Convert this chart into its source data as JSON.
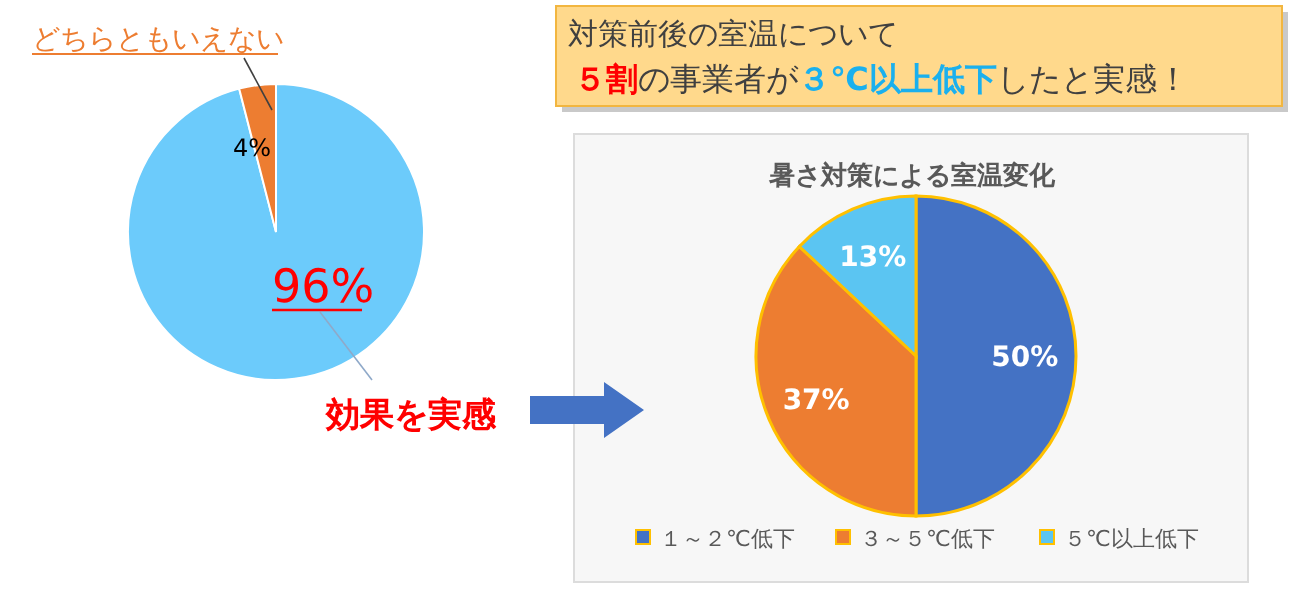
{
  "chart_data": [
    {
      "type": "pie",
      "categories": [
        "効果を実感",
        "どちらともいえない"
      ],
      "values": [
        96,
        4
      ],
      "colors": [
        "#6ccbfb",
        "#ed7d31"
      ],
      "value_labels": [
        "96%",
        "4%"
      ]
    },
    {
      "type": "pie",
      "title": "暑さ対策による室温変化",
      "categories": [
        "１～２℃低下",
        "３～５℃低下",
        "５℃以上低下"
      ],
      "values": [
        50,
        37,
        13
      ],
      "colors": [
        "#4472c4",
        "#ed7d31",
        "#5bc5f2"
      ],
      "value_labels": [
        "50%",
        "37%",
        "13%"
      ],
      "legend": "bottom",
      "annotations": [
        "対策前後の室温について",
        "５割",
        "の事業者が",
        "３℃以上低下",
        "したと実感！"
      ]
    }
  ]
}
